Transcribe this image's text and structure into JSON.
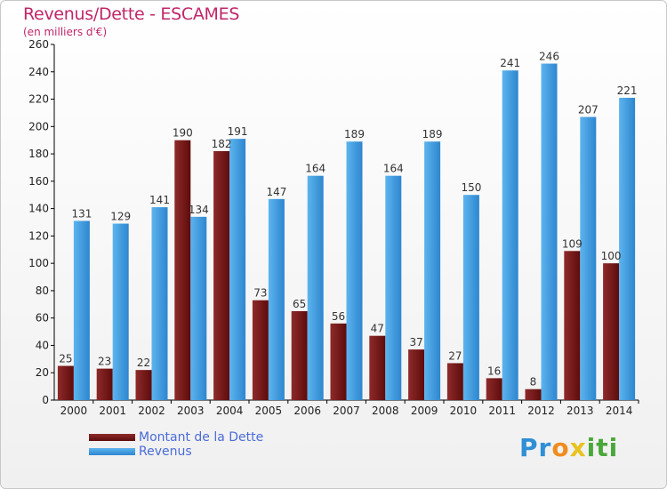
{
  "chart_data": {
    "type": "bar",
    "title": "Revenus/Dette - ESCAMES",
    "subtitle": "(en milliers d'€)",
    "categories": [
      "2000",
      "2001",
      "2002",
      "2003",
      "2004",
      "2005",
      "2006",
      "2007",
      "2008",
      "2009",
      "2010",
      "2011",
      "2012",
      "2013",
      "2014"
    ],
    "series": [
      {
        "name": "Montant de la Dette",
        "color": "#7a1a1a",
        "values": [
          25,
          23,
          22,
          190,
          182,
          73,
          65,
          56,
          47,
          37,
          27,
          16,
          8,
          109,
          100
        ]
      },
      {
        "name": "Revenus",
        "color": "#3d9de0",
        "values": [
          131,
          129,
          141,
          134,
          191,
          147,
          164,
          189,
          164,
          189,
          150,
          241,
          246,
          207,
          221
        ]
      }
    ],
    "ylim": [
      0,
      260
    ],
    "yticks": [
      0,
      20,
      40,
      60,
      80,
      100,
      120,
      140,
      160,
      180,
      200,
      220,
      240,
      260
    ],
    "grid": false,
    "legend_position": "bottom-left",
    "data_labels": true
  },
  "logo": {
    "text_parts": [
      "Pr",
      "o",
      "x",
      "iti"
    ]
  }
}
